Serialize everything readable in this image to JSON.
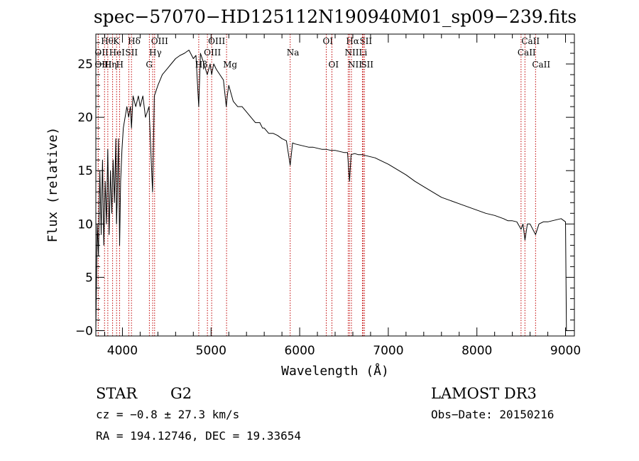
{
  "chart_data": {
    "type": "line",
    "title": "spec−57070−HD125112N190940M01_sp09−239.fits",
    "xlabel": "Wavelength (Å)",
    "ylabel": "Flux (relative)",
    "xlim": [
      3700,
      9100
    ],
    "ylim": [
      -0.5,
      27.8
    ],
    "x_ticks": [
      4000,
      5000,
      6000,
      7000,
      8000,
      9000
    ],
    "x_tick_labels": [
      "4000",
      "5000",
      "6000",
      "7000",
      "8000",
      "9000"
    ],
    "y_ticks": [
      0,
      5,
      10,
      15,
      20,
      25
    ],
    "y_tick_labels": [
      "−0",
      "5",
      "10",
      "15",
      "20",
      "25"
    ],
    "grid": false,
    "series": [
      {
        "x": [
          3700,
          3715,
          3730,
          3745,
          3760,
          3775,
          3790,
          3805,
          3820,
          3835,
          3850,
          3865,
          3880,
          3895,
          3910,
          3925,
          3933,
          3940,
          3955,
          3968,
          3980,
          3995,
          4010,
          4030,
          4050,
          4070,
          4090,
          4102,
          4120,
          4150,
          4180,
          4200,
          4230,
          4260,
          4300,
          4330,
          4340,
          4360,
          4400,
          4450,
          4500,
          4550,
          4600,
          4650,
          4700,
          4750,
          4800,
          4830,
          4861,
          4880,
          4920,
          4957,
          4990,
          5007,
          5030,
          5060,
          5100,
          5140,
          5172,
          5183,
          5200,
          5250,
          5300,
          5350,
          5400,
          5450,
          5500,
          5550,
          5580,
          5600,
          5650,
          5700,
          5750,
          5800,
          5850,
          5893,
          5920,
          5950,
          6000,
          6050,
          6100,
          6150,
          6200,
          6250,
          6300,
          6350,
          6400,
          6450,
          6500,
          6540,
          6563,
          6580,
          6620,
          6660,
          6700,
          6750,
          6800,
          6850,
          6900,
          6950,
          7000,
          7100,
          7200,
          7300,
          7400,
          7500,
          7600,
          7700,
          7800,
          7900,
          8000,
          8100,
          8200,
          8300,
          8350,
          8400,
          8450,
          8498,
          8520,
          8542,
          8570,
          8600,
          8662,
          8700,
          8750,
          8800,
          8850,
          8900,
          8950,
          9000,
          9010
        ],
        "y": [
          0,
          10,
          7,
          15,
          9,
          16,
          8,
          14,
          10,
          17,
          9,
          15,
          11,
          16,
          12,
          18,
          10,
          12,
          18,
          8,
          14,
          17,
          19,
          20,
          21,
          20,
          21,
          19,
          22,
          21,
          22,
          21,
          22,
          20,
          21,
          15,
          13,
          22,
          23,
          24,
          24.5,
          25,
          25.5,
          25.8,
          26,
          26.3,
          25.5,
          25.8,
          21,
          26,
          25,
          24,
          25,
          24,
          25,
          24.5,
          24,
          23.5,
          21,
          22,
          23,
          21.5,
          21,
          21,
          20.5,
          20,
          19.5,
          19.5,
          19,
          19,
          18.5,
          18.5,
          18.3,
          18,
          17.8,
          15.5,
          17.6,
          17.5,
          17.4,
          17.3,
          17.2,
          17.2,
          17.1,
          17,
          17,
          16.9,
          16.9,
          16.8,
          16.7,
          16.7,
          14,
          16.5,
          16.6,
          16.5,
          16.5,
          16.4,
          16.3,
          16.2,
          16,
          15.8,
          15.6,
          15.1,
          14.6,
          14,
          13.5,
          13,
          12.5,
          12.2,
          11.9,
          11.6,
          11.3,
          11.0,
          10.8,
          10.5,
          10.3,
          10.3,
          10.2,
          9.5,
          10,
          8.5,
          10,
          10,
          9.0,
          10,
          10.2,
          10.2,
          10.3,
          10.4,
          10.5,
          10.2,
          0
        ]
      }
    ],
    "spectral_lines": [
      {
        "label": "Hθ",
        "wavelength": 3798,
        "row": 1
      },
      {
        "label": "OII",
        "wavelength": 3727,
        "row": 2
      },
      {
        "label": "OIII",
        "wavelength": 3727,
        "row": 3
      },
      {
        "label": "K",
        "wavelength": 3934,
        "row": 1
      },
      {
        "label": "HeI",
        "wavelength": 3889,
        "row": 2
      },
      {
        "label": "Hη",
        "wavelength": 3835,
        "row": 3
      },
      {
        "label": "SII",
        "wavelength": 4072,
        "row": 2
      },
      {
        "label": "H",
        "wavelength": 3968,
        "row": 3
      },
      {
        "label": "Hδ",
        "wavelength": 4102,
        "row": 1
      },
      {
        "label": "OIII",
        "wavelength": 4363,
        "row": 1
      },
      {
        "label": "Hγ",
        "wavelength": 4341,
        "row": 2
      },
      {
        "label": "G",
        "wavelength": 4304,
        "row": 3
      },
      {
        "label": "OIII",
        "wavelength": 5007,
        "row": 1
      },
      {
        "label": "OIII",
        "wavelength": 4959,
        "row": 2
      },
      {
        "label": "Hβ",
        "wavelength": 4861,
        "row": 3
      },
      {
        "label": "Mg",
        "wavelength": 5175,
        "row": 3
      },
      {
        "label": "Na",
        "wavelength": 5893,
        "row": 2
      },
      {
        "label": "OI",
        "wavelength": 6300,
        "row": 1
      },
      {
        "label": "OI",
        "wavelength": 6364,
        "row": 3
      },
      {
        "label": "Hα",
        "wavelength": 6563,
        "row": 1
      },
      {
        "label": "SII",
        "wavelength": 6716,
        "row": 1
      },
      {
        "label": "NII",
        "wavelength": 6548,
        "row": 2
      },
      {
        "label": "Li",
        "wavelength": 6708,
        "row": 2
      },
      {
        "label": "NII",
        "wavelength": 6584,
        "row": 3
      },
      {
        "label": "SII",
        "wavelength": 6731,
        "row": 3
      },
      {
        "label": "CaII",
        "wavelength": 8542,
        "row": 1
      },
      {
        "label": "CaII",
        "wavelength": 8498,
        "row": 2
      },
      {
        "label": "CaII",
        "wavelength": 8662,
        "row": 3
      }
    ],
    "line_color": "#000000",
    "marker_color": "#c00000"
  },
  "info": {
    "object_class": "STAR",
    "subclass": "G2",
    "survey": "LAMOST DR3",
    "cz": "cz = −0.8 ± 27.3 km/s",
    "obs_date": "Obs−Date: 20150216",
    "coords": "RA = 194.12746, DEC =  19.33654"
  }
}
